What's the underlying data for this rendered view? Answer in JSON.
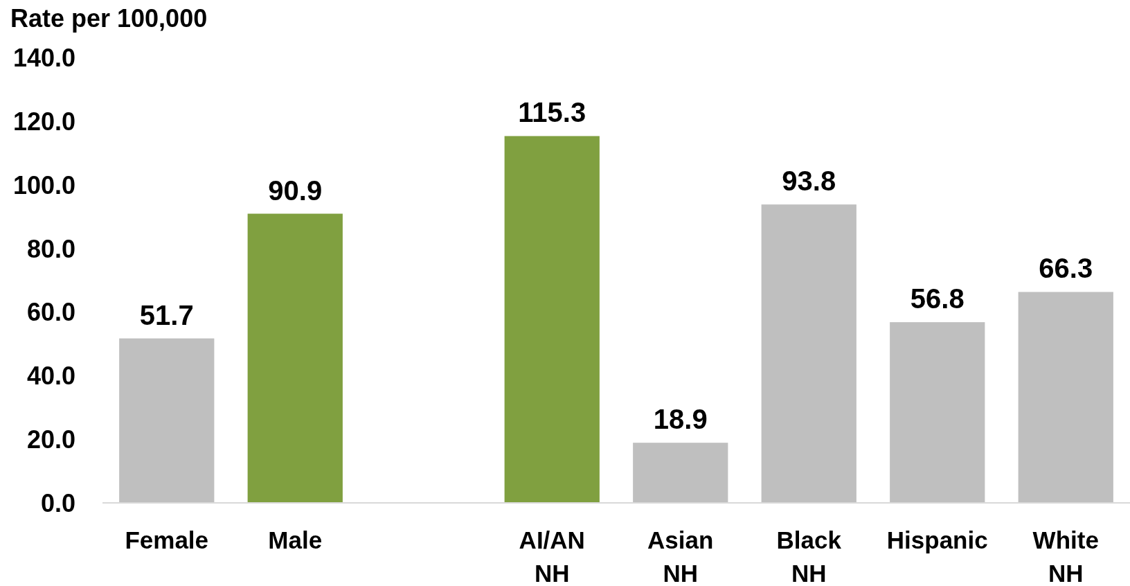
{
  "chart_data": {
    "type": "bar",
    "ylabel": "Rate per 100,000",
    "categories": [
      "Female",
      "Male",
      null,
      "AI/AN\nNH",
      "Asian\nNH",
      "Black\nNH",
      "Hispanic",
      "White\nNH"
    ],
    "values": [
      51.7,
      90.9,
      null,
      115.3,
      18.9,
      93.8,
      56.8,
      66.3
    ],
    "colors": [
      "#bfbfbf",
      "#80a040",
      null,
      "#80a040",
      "#bfbfbf",
      "#bfbfbf",
      "#bfbfbf",
      "#bfbfbf"
    ],
    "ylim": [
      0,
      140
    ],
    "yticks": [
      {
        "value": 0,
        "label": "0.0"
      },
      {
        "value": 20,
        "label": "20.0"
      },
      {
        "value": 40,
        "label": "40.0"
      },
      {
        "value": 60,
        "label": "60.0"
      },
      {
        "value": 80,
        "label": "80.0"
      },
      {
        "value": 100,
        "label": "100.0"
      },
      {
        "value": 120,
        "label": "120.0"
      },
      {
        "value": 140,
        "label": "140.0"
      }
    ],
    "data_labels": true
  }
}
